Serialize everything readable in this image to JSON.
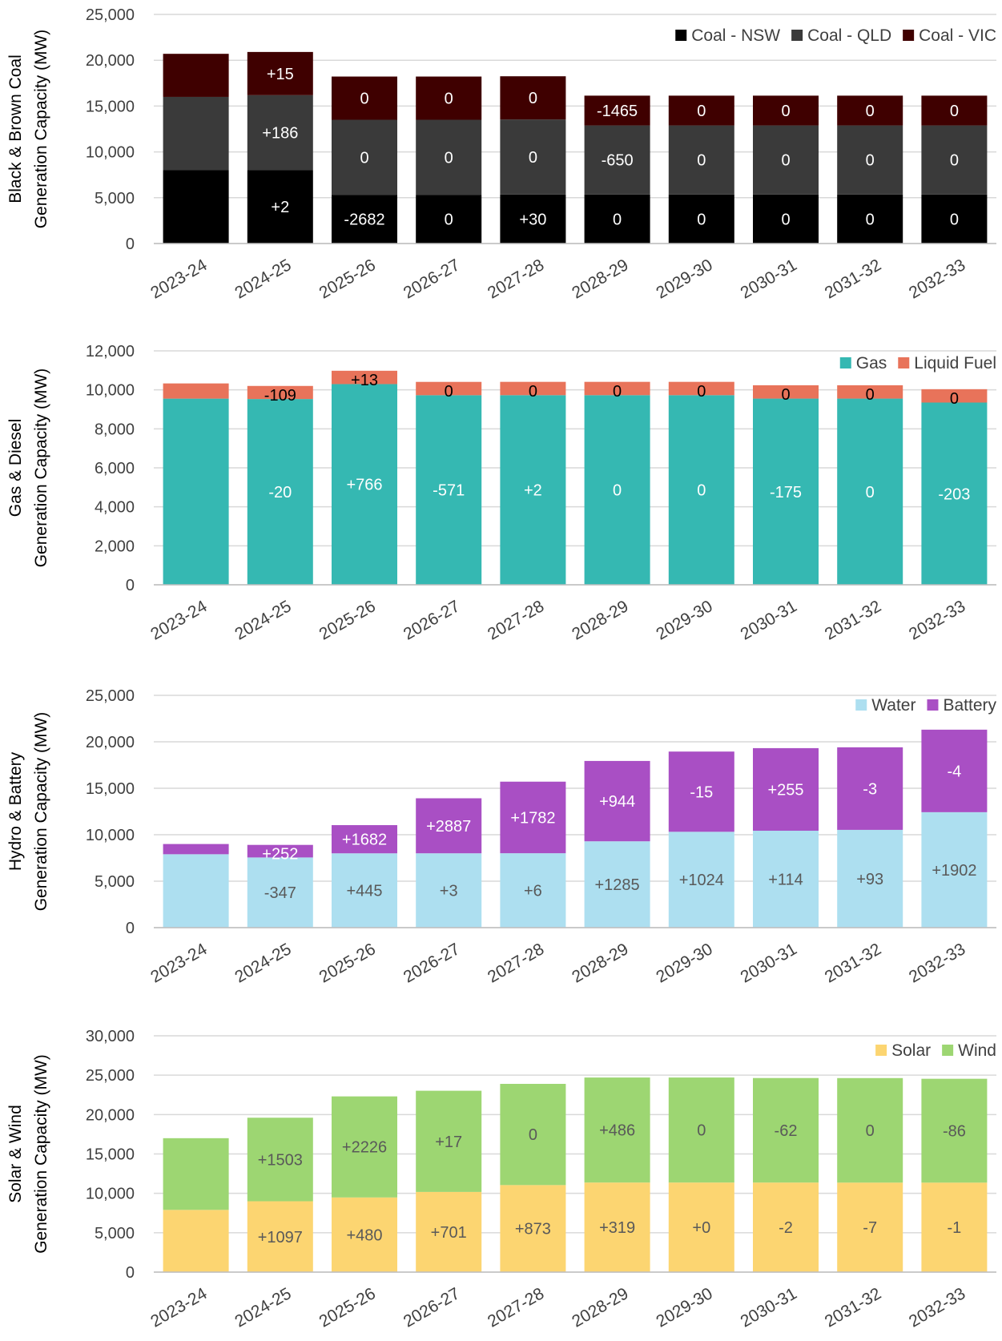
{
  "chart_data": [
    {
      "type": "bar",
      "stacked": true,
      "ylabel": [
        "Black & Brown Coal",
        "Generation Capacity (MW)"
      ],
      "ylim": [
        0,
        25000
      ],
      "yticks": [
        0,
        5000,
        10000,
        15000,
        20000,
        25000
      ],
      "ytick_labels": [
        "0",
        "5,000",
        "10,000",
        "15,000",
        "20,000",
        "25,000"
      ],
      "grid": true,
      "legend_position": "top-right",
      "categories": [
        "2023-24",
        "2024-25",
        "2025-26",
        "2026-27",
        "2027-28",
        "2028-29",
        "2029-30",
        "2030-31",
        "2031-32",
        "2032-33"
      ],
      "series": [
        {
          "name": "Coal - NSW",
          "color": "#000000",
          "label_color": "#ffffff",
          "values": [
            8000,
            8002,
            5320,
            5320,
            5350,
            5350,
            5350,
            5350,
            5350,
            5350
          ],
          "labels": [
            "",
            "+2",
            "-2682",
            "0",
            "+30",
            "0",
            "0",
            "0",
            "0",
            "0"
          ]
        },
        {
          "name": "Coal - QLD",
          "color": "#3a3a3a",
          "label_color": "#ffffff",
          "values": [
            8000,
            8186,
            8186,
            8186,
            8186,
            7536,
            7536,
            7536,
            7536,
            7536
          ],
          "labels": [
            "",
            "+186",
            "0",
            "0",
            "0",
            "-650",
            "0",
            "0",
            "0",
            "0"
          ]
        },
        {
          "name": "Coal - VIC",
          "color": "#3f0000",
          "label_color": "#ffffff",
          "values": [
            4700,
            4715,
            4715,
            4715,
            4715,
            3250,
            3250,
            3250,
            3250,
            3250
          ],
          "labels": [
            "",
            "+15",
            "0",
            "0",
            "0",
            "-1465",
            "0",
            "0",
            "0",
            "0"
          ]
        }
      ]
    },
    {
      "type": "bar",
      "stacked": true,
      "ylabel": [
        "Gas & Diesel",
        "Generation Capacity (MW)"
      ],
      "ylim": [
        0,
        12000
      ],
      "yticks": [
        0,
        2000,
        4000,
        6000,
        8000,
        10000,
        12000
      ],
      "ytick_labels": [
        "0",
        "2,000",
        "4,000",
        "6,000",
        "8,000",
        "10,000",
        "12,000"
      ],
      "grid": true,
      "legend_position": "top-right",
      "categories": [
        "2023-24",
        "2024-25",
        "2025-26",
        "2026-27",
        "2027-28",
        "2028-29",
        "2029-30",
        "2030-31",
        "2031-32",
        "2032-33"
      ],
      "series": [
        {
          "name": "Gas",
          "color": "#35b8b2",
          "label_color": "#ffffff",
          "values": [
            9550,
            9530,
            10296,
            9725,
            9727,
            9727,
            9727,
            9552,
            9552,
            9349
          ],
          "labels": [
            "",
            "-20",
            "+766",
            "-571",
            "+2",
            "0",
            "0",
            "-175",
            "0",
            "-203"
          ]
        },
        {
          "name": "Liquid Fuel",
          "color": "#e8735a",
          "label_color": "#000000",
          "values": [
            780,
            671,
            684,
            684,
            684,
            684,
            684,
            684,
            684,
            684
          ],
          "labels": [
            "",
            "-109",
            "+13",
            "0",
            "0",
            "0",
            "0",
            "0",
            "0",
            "0"
          ]
        }
      ]
    },
    {
      "type": "bar",
      "stacked": true,
      "ylabel": [
        "Hydro & Battery",
        "Generation Capacity (MW)"
      ],
      "ylim": [
        0,
        25000
      ],
      "yticks": [
        0,
        5000,
        10000,
        15000,
        20000,
        25000
      ],
      "ytick_labels": [
        "0",
        "5,000",
        "10,000",
        "15,000",
        "20,000",
        "25,000"
      ],
      "grid": true,
      "legend_position": "top-right",
      "categories": [
        "2023-24",
        "2024-25",
        "2025-26",
        "2026-27",
        "2027-28",
        "2028-29",
        "2029-30",
        "2030-31",
        "2031-32",
        "2032-33"
      ],
      "series": [
        {
          "name": "Water",
          "color": "#addff0",
          "label_color": "#595959",
          "values": [
            7900,
            7553,
            7998,
            8001,
            8007,
            9292,
            10316,
            10430,
            10523,
            12425
          ],
          "labels": [
            "",
            "-347",
            "+445",
            "+3",
            "+6",
            "+1285",
            "+1024",
            "+114",
            "+93",
            "+1902"
          ]
        },
        {
          "name": "Battery",
          "color": "#a94fc4",
          "label_color": "#ffffff",
          "values": [
            1100,
            1352,
            3034,
            5921,
            7703,
            8647,
            8632,
            8887,
            8884,
            8880
          ],
          "labels": [
            "",
            "+252",
            "+1682",
            "+2887",
            "+1782",
            "+944",
            "-15",
            "+255",
            "-3",
            "-4"
          ]
        }
      ]
    },
    {
      "type": "bar",
      "stacked": true,
      "ylabel": [
        "Solar & Wind",
        "Generation Capacity (MW)"
      ],
      "ylim": [
        0,
        30000
      ],
      "yticks": [
        0,
        5000,
        10000,
        15000,
        20000,
        25000,
        30000
      ],
      "ytick_labels": [
        "0",
        "5,000",
        "10,000",
        "15,000",
        "20,000",
        "25,000",
        "30,000"
      ],
      "grid": true,
      "legend_position": "top-right",
      "categories": [
        "2023-24",
        "2024-25",
        "2025-26",
        "2026-27",
        "2027-28",
        "2028-29",
        "2029-30",
        "2030-31",
        "2031-32",
        "2032-33"
      ],
      "series": [
        {
          "name": "Solar",
          "color": "#fcd571",
          "label_color": "#595959",
          "values": [
            7900,
            8997,
            9477,
            10178,
            11051,
            11370,
            11370,
            11368,
            11361,
            11360
          ],
          "labels": [
            "",
            "+1097",
            "+480",
            "+701",
            "+873",
            "+319",
            "+0",
            "-2",
            "-7",
            "-1"
          ]
        },
        {
          "name": "Wind",
          "color": "#9dd672",
          "label_color": "#595959",
          "values": [
            9100,
            10603,
            12829,
            12846,
            12846,
            13332,
            13332,
            13270,
            13270,
            13184
          ],
          "labels": [
            "",
            "+1503",
            "+2226",
            "+17",
            "0",
            "+486",
            "0",
            "-62",
            "0",
            "-86"
          ]
        }
      ]
    }
  ]
}
